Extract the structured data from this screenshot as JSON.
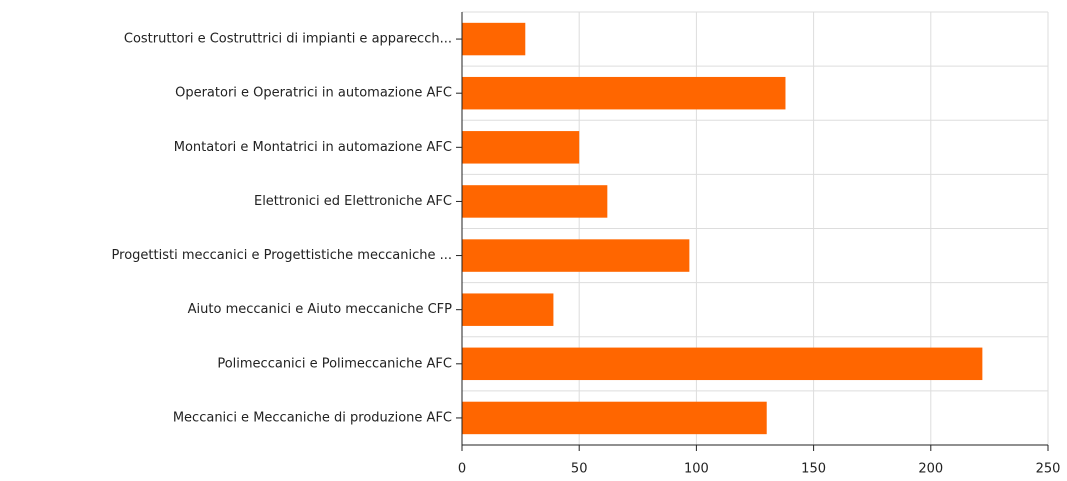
{
  "chart_data": {
    "type": "bar",
    "horizontal": true,
    "categories": [
      "Costruttori e Costruttrici di impianti e apparecch...",
      "Operatori e Operatrici in automazione AFC",
      "Montatori e Montatrici in automazione AFC",
      "Elettronici ed Elettroniche AFC",
      "Progettisti meccanici e Progettistiche meccaniche ...",
      "Aiuto meccanici e Aiuto meccaniche CFP",
      "Polimeccanici e Polimeccaniche AFC",
      "Meccanici e Meccaniche di produzione AFC"
    ],
    "values": [
      27,
      138,
      50,
      62,
      97,
      39,
      222,
      130
    ],
    "color": "#ff6600",
    "xlim": [
      0,
      250
    ],
    "xticks": [
      0,
      50,
      100,
      150,
      200,
      250
    ],
    "grid": true
  }
}
